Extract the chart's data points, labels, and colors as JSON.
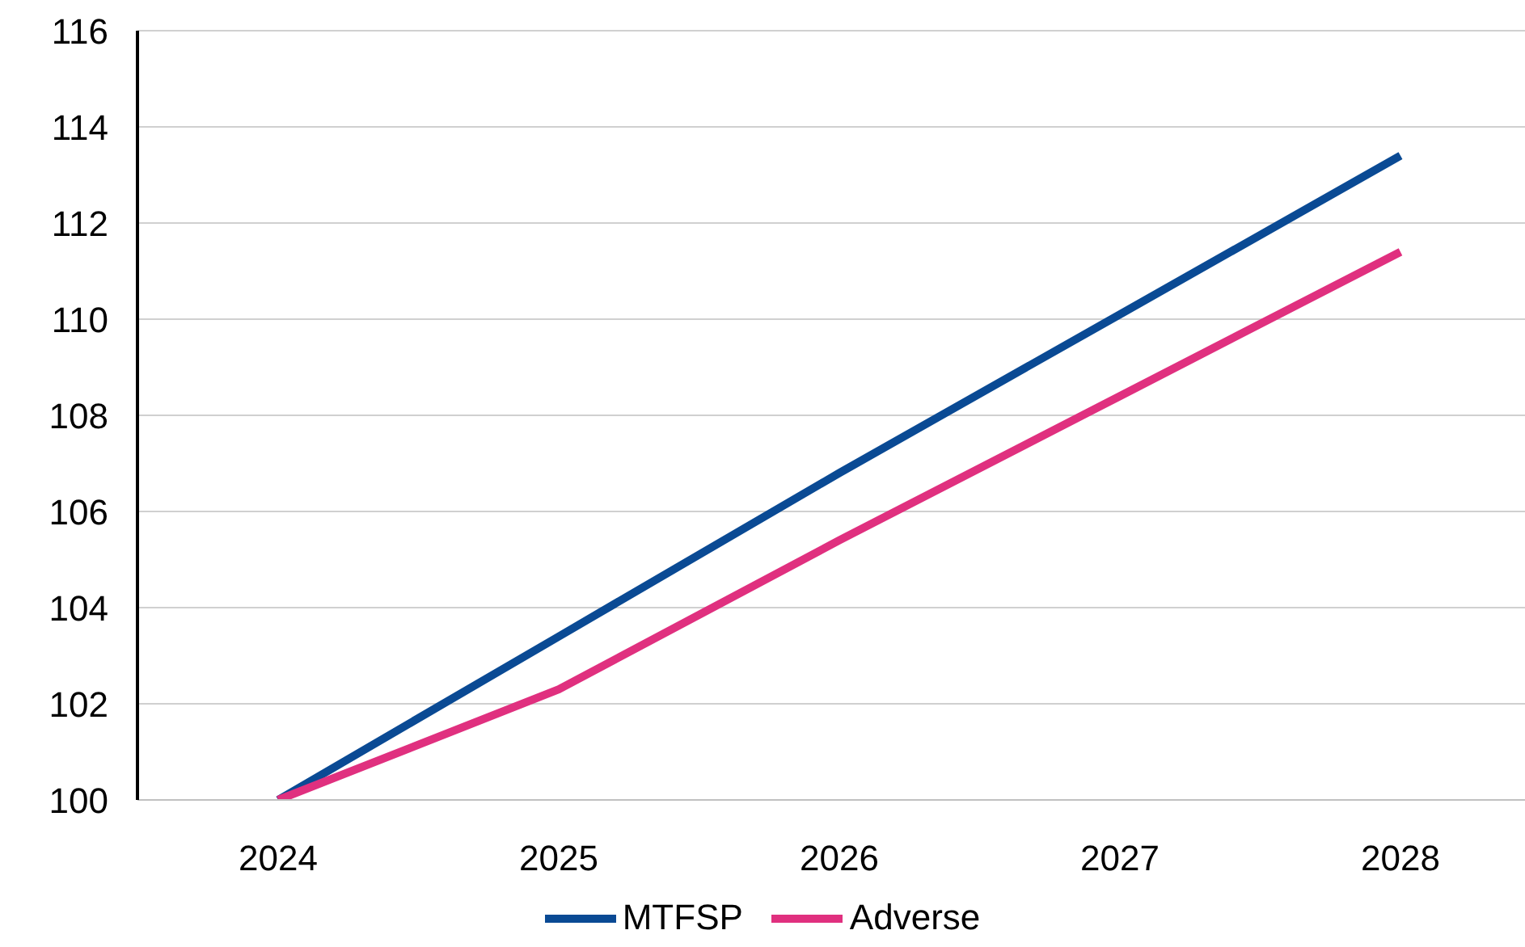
{
  "chart_data": {
    "type": "line",
    "categories": [
      "2024",
      "2025",
      "2026",
      "2027",
      "2028"
    ],
    "series": [
      {
        "name": "MTFSP",
        "color": "#0a4a94",
        "values": [
          100,
          103.4,
          106.8,
          110.1,
          113.4
        ]
      },
      {
        "name": "Adverse",
        "color": "#e0307f",
        "values": [
          100,
          102.3,
          105.4,
          108.4,
          111.4
        ]
      }
    ],
    "ylim": [
      100,
      116
    ],
    "yticks": [
      100,
      102,
      104,
      106,
      108,
      110,
      112,
      114,
      116
    ],
    "grid": "y",
    "legend": "bottom",
    "marker": "none",
    "line_style": "solid"
  }
}
